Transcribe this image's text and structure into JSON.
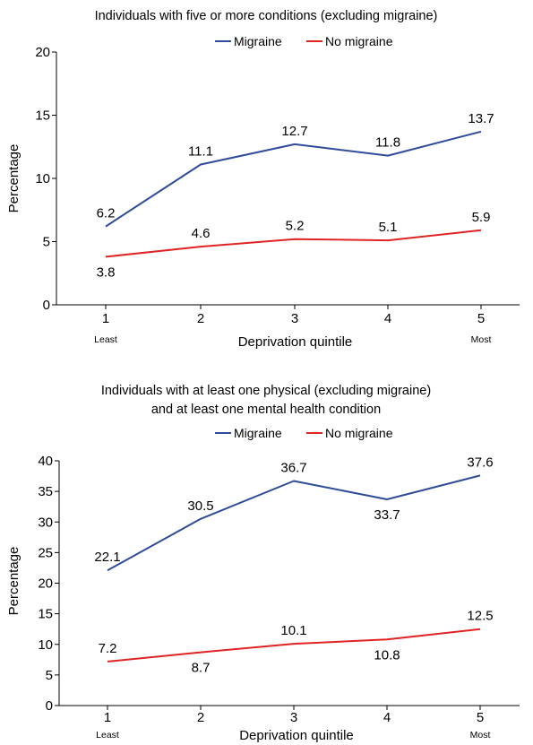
{
  "colors": {
    "migraine": "#2f4b9a",
    "no_migraine": "#e02424",
    "axis": "#000000"
  },
  "chart_data": [
    {
      "type": "line",
      "title": "Individuals with five or more conditions (excluding migraine)",
      "xlabel": "Deprivation quintile",
      "ylabel": "Percentage",
      "categories": [
        "1",
        "2",
        "3",
        "4",
        "5"
      ],
      "x_sublabels": {
        "first": "Least",
        "last": "Most"
      },
      "yticks": [
        "0",
        "5",
        "10",
        "15",
        "20"
      ],
      "ylim": [
        0,
        20
      ],
      "grid": false,
      "legend_position": "top-center",
      "series": [
        {
          "name": "Migraine",
          "color": "#2f4b9a",
          "values": [
            6.2,
            11.1,
            12.7,
            11.8,
            13.7
          ],
          "labels": [
            "6.2",
            "11.1",
            "12.7",
            "11.8",
            "13.7"
          ],
          "label_pos": [
            "above",
            "above",
            "above",
            "above",
            "above"
          ]
        },
        {
          "name": "No migraine",
          "color": "#e02424",
          "values": [
            3.8,
            4.6,
            5.2,
            5.1,
            5.9
          ],
          "labels": [
            "3.8",
            "4.6",
            "5.2",
            "5.1",
            "5.9"
          ],
          "label_pos": [
            "below",
            "above",
            "above",
            "above",
            "above"
          ]
        }
      ]
    },
    {
      "type": "line",
      "title": "Individuals with at least one physical (excluding migraine) and at least one mental health condition",
      "title_lines": [
        "Individuals with at least one physical (excluding migraine)",
        "and at least one mental health condition"
      ],
      "xlabel": "Deprivation quintile",
      "ylabel": "Percentage",
      "categories": [
        "1",
        "2",
        "3",
        "4",
        "5"
      ],
      "x_sublabels": {
        "first": "Least",
        "last": "Most"
      },
      "yticks": [
        "0",
        "5",
        "10",
        "15",
        "20",
        "25",
        "30",
        "35",
        "40"
      ],
      "ylim": [
        0,
        40
      ],
      "grid": false,
      "legend_position": "top-center",
      "series": [
        {
          "name": "Migraine",
          "color": "#2f4b9a",
          "values": [
            22.1,
            30.5,
            36.7,
            33.7,
            37.6
          ],
          "labels": [
            "22.1",
            "30.5",
            "36.7",
            "33.7",
            "37.6"
          ],
          "label_pos": [
            "above",
            "above",
            "above",
            "below",
            "above"
          ]
        },
        {
          "name": "No migraine",
          "color": "#e02424",
          "values": [
            7.2,
            8.7,
            10.1,
            10.8,
            12.5
          ],
          "labels": [
            "7.2",
            "8.7",
            "10.1",
            "10.8",
            "12.5"
          ],
          "label_pos": [
            "above",
            "below",
            "above",
            "below",
            "above"
          ]
        }
      ]
    }
  ]
}
